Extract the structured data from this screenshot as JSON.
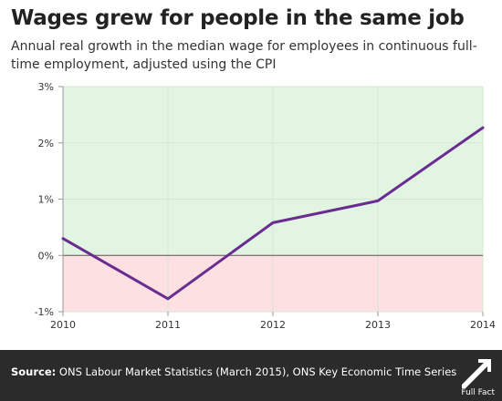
{
  "title": "Wages grew for people in the same job",
  "subtitle": "Annual real growth in the median wage for employees in continuous full-time employment, adjusted using the CPI",
  "footer": {
    "source_label": "Source:",
    "source_text": "ONS Labour Market Statistics (March 2015), ONS Key Economic Time Series",
    "logo_text": "Full Fact"
  },
  "colors": {
    "line": "#6a2c91",
    "positive_band": "#e2f5e2",
    "negative_band": "#fde0e2",
    "grid": "#d6e6d6",
    "zero_line": "#555555",
    "footer_bg": "#2b2b2b"
  },
  "chart_data": {
    "type": "line",
    "x": [
      2010,
      2011,
      2012,
      2013,
      2014
    ],
    "series": [
      {
        "values": [
          0.3,
          -0.77,
          0.58,
          0.97,
          2.27
        ]
      }
    ],
    "xlabel": "",
    "ylabel": "",
    "ylim": [
      -1,
      3
    ],
    "xlim": [
      2010,
      2014
    ],
    "yticks": [
      "-1%",
      "0%",
      "1%",
      "2%",
      "3%"
    ],
    "ytick_values": [
      -1,
      0,
      1,
      2,
      3
    ],
    "xticks": [
      "2010",
      "2011",
      "2012",
      "2013",
      "2014"
    ],
    "grid": true,
    "background_bands": [
      {
        "from": 0,
        "to": 3,
        "meaning": "positive"
      },
      {
        "from": -1,
        "to": 0,
        "meaning": "negative"
      }
    ]
  }
}
